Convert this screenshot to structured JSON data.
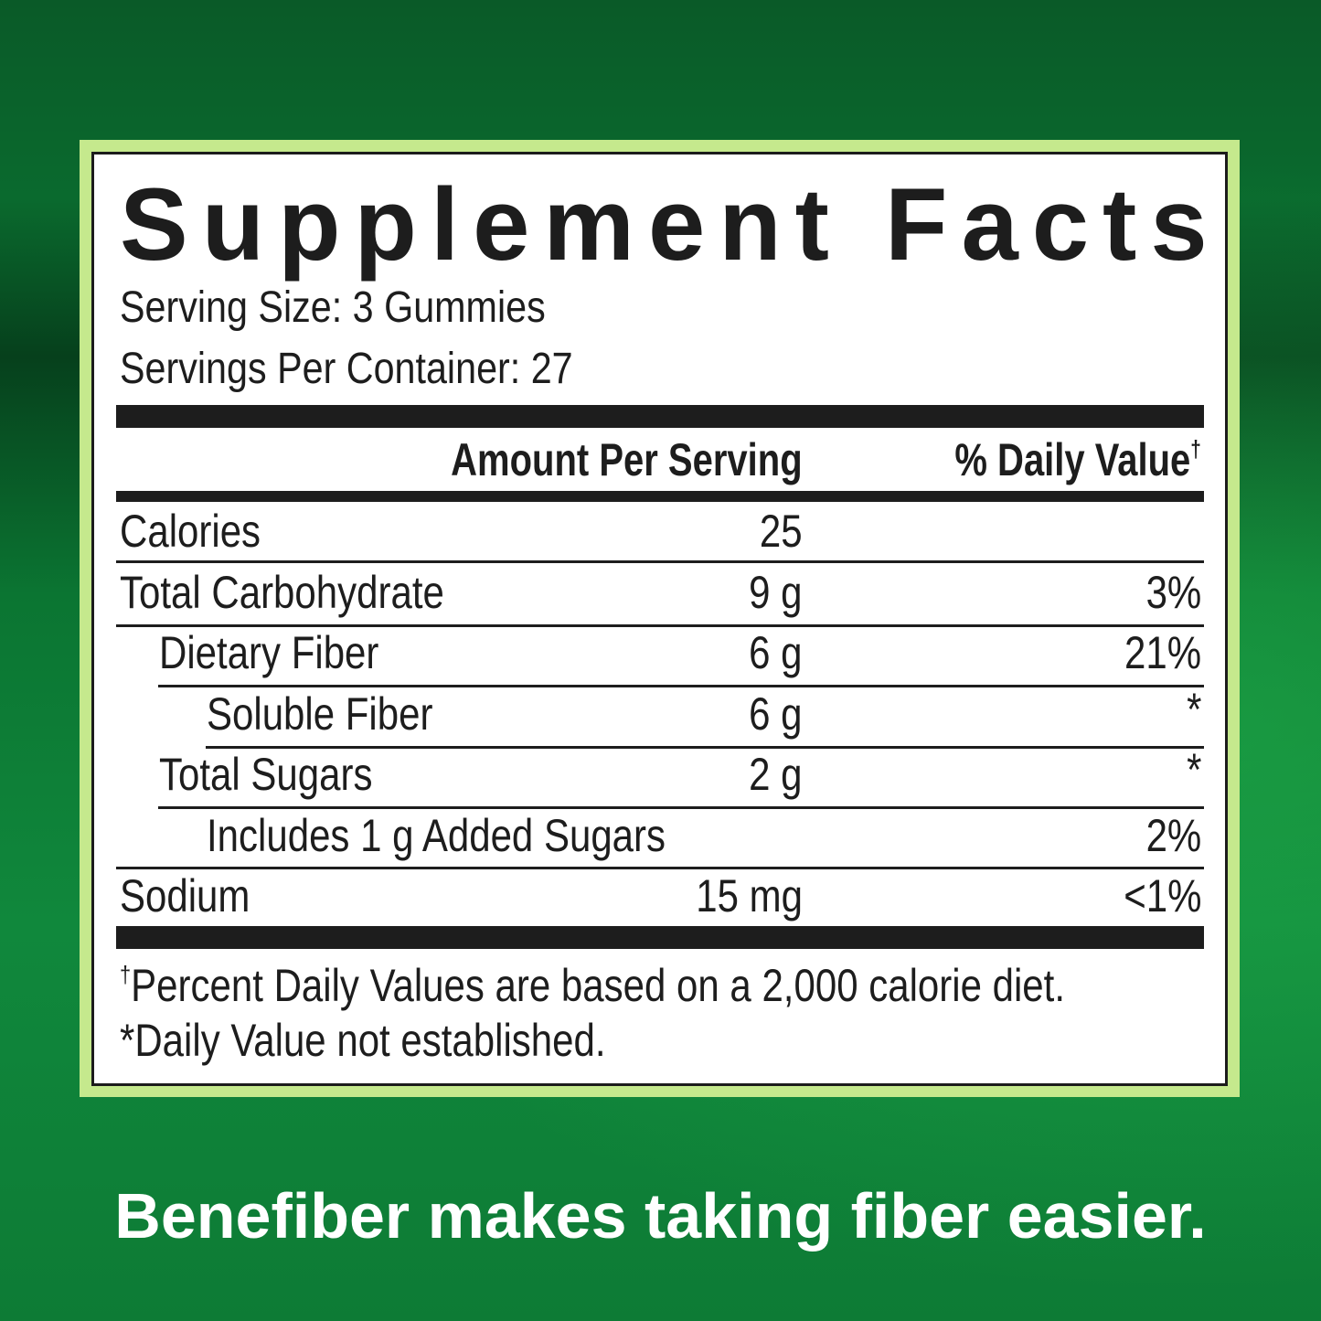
{
  "label": {
    "title": "Supplement Facts",
    "serving_size": "Serving Size: 3 Gummies",
    "servings_per_container": "Servings Per Container: 27",
    "header_amount": "Amount Per Serving",
    "header_dv": "% Daily Value",
    "header_dv_mark": "†",
    "rows": [
      {
        "name": "Calories",
        "amount": "25",
        "dv": ""
      },
      {
        "name": "Total Carbohydrate",
        "amount": "9 g",
        "dv": "3%"
      },
      {
        "name": "Dietary Fiber",
        "amount": "6 g",
        "dv": "21%"
      },
      {
        "name": "Soluble Fiber",
        "amount": "6 g",
        "dv": "*"
      },
      {
        "name": "Total Sugars",
        "amount": "2 g",
        "dv": "*"
      },
      {
        "name": "Includes 1 g Added Sugars",
        "amount": "",
        "dv": "2%"
      },
      {
        "name": "Sodium",
        "amount": "15 mg",
        "dv": "<1%"
      }
    ],
    "footnote_mark": "†",
    "footnote_1": "Percent Daily Values are based on a 2,000 calorie diet.",
    "footnote_2": "*Daily Value not established."
  },
  "tagline": "Benefiber makes taking fiber easier.",
  "colors": {
    "background": "#0b7532",
    "frame": "#c5e98d",
    "text": "#1d1d1d"
  }
}
